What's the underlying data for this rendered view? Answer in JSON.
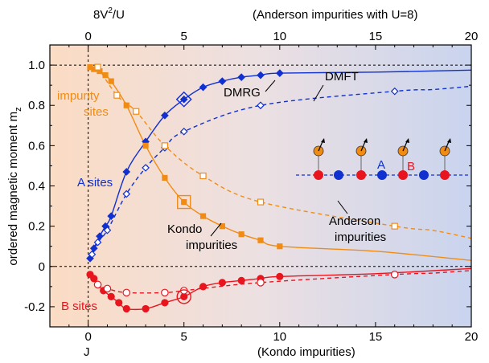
{
  "chart_data": {
    "type": "line",
    "title": "",
    "xlabel": "J",
    "xlabel_right": "(Kondo impurities)",
    "x2label": "8V²/U",
    "x2label_base": "8V",
    "x2label_sup": "2",
    "x2label_tail": "/U",
    "x2label_right": "(Anderson impurities with U=8)",
    "ylabel": "ordered magnetic moment  m",
    "ylabel_sub": "z",
    "xlim": [
      -2,
      20
    ],
    "ylim": [
      -0.3,
      1.1
    ],
    "x_ticks": [
      0,
      5,
      10,
      15,
      20
    ],
    "y_ticks": [
      -0.2,
      0,
      0.2,
      0.4,
      0.6,
      0.8,
      1.0
    ],
    "y_tick_labels": [
      "-0.2",
      "0",
      "0.2",
      "0.4",
      "0.6",
      "0.8",
      "1.0"
    ],
    "grid": false,
    "reference_lines": {
      "x": 0,
      "y": [
        0,
        1.0
      ]
    },
    "series": [
      {
        "key": "A-DMRG-Kondo",
        "color": "#1030d0",
        "marker": "filled-diamond",
        "line": "solid",
        "x": [
          0.1,
          0.3,
          0.6,
          0.9,
          1.2,
          2.0,
          3.0,
          4.0,
          5.0,
          6.0,
          7.0,
          8.0,
          9.0,
          10.0
        ],
        "y": [
          0.04,
          0.09,
          0.15,
          0.2,
          0.25,
          0.47,
          0.62,
          0.75,
          0.83,
          0.89,
          0.92,
          0.94,
          0.95,
          0.96
        ]
      },
      {
        "key": "A-DMFT-Anderson",
        "color": "#1030d0",
        "marker": "open-diamond",
        "line": "dashed",
        "x": [
          0.2,
          0.5,
          1.0,
          2.0,
          3.0,
          4.0,
          5.0,
          9.0,
          16.0
        ],
        "y": [
          0.06,
          0.12,
          0.18,
          0.36,
          0.49,
          0.59,
          0.67,
          0.8,
          0.87
        ]
      },
      {
        "key": "impurity-DMRG-Kondo",
        "color": "#f08c14",
        "marker": "filled-square",
        "line": "solid",
        "x": [
          0.1,
          0.3,
          0.6,
          0.9,
          1.2,
          2.0,
          3.0,
          4.0,
          5.0,
          6.0,
          7.0,
          8.0,
          9.0,
          10.0
        ],
        "y": [
          0.99,
          0.98,
          0.97,
          0.95,
          0.92,
          0.8,
          0.6,
          0.44,
          0.32,
          0.25,
          0.2,
          0.16,
          0.13,
          0.1
        ]
      },
      {
        "key": "impurity-DMFT-Anderson",
        "color": "#f08c14",
        "marker": "open-square",
        "line": "dashed",
        "x": [
          0.5,
          1.5,
          2.5,
          4.0,
          6.0,
          9.0,
          16.0
        ],
        "y": [
          0.99,
          0.85,
          0.77,
          0.6,
          0.45,
          0.32,
          0.2
        ]
      },
      {
        "key": "B-DMRG-Kondo",
        "color": "#e8141e",
        "marker": "filled-circle",
        "line": "solid",
        "x": [
          0.1,
          0.3,
          0.5,
          0.8,
          1.2,
          1.6,
          2.0,
          3.0,
          4.0,
          5.0,
          6.0,
          7.0,
          8.0,
          9.0,
          10.0
        ],
        "y": [
          -0.04,
          -0.06,
          -0.09,
          -0.12,
          -0.15,
          -0.18,
          -0.21,
          -0.21,
          -0.18,
          -0.15,
          -0.1,
          -0.08,
          -0.07,
          -0.06,
          -0.05
        ]
      },
      {
        "key": "B-DMFT-Anderson",
        "color": "#e8141e",
        "marker": "open-circle",
        "line": "dashed",
        "x": [
          0.5,
          1.0,
          2.0,
          4.0,
          5.0,
          9.0,
          16.0
        ],
        "y": [
          -0.09,
          -0.11,
          -0.13,
          -0.13,
          -0.12,
          -0.08,
          -0.04
        ]
      }
    ],
    "highlighted_points": [
      {
        "series": "A-DMRG-Kondo",
        "x": 5.0,
        "y": 0.83
      },
      {
        "series": "impurity-DMRG-Kondo",
        "x": 5.0,
        "y": 0.32
      },
      {
        "series": "B-DMRG-Kondo",
        "x": 5.0,
        "y": -0.15
      }
    ],
    "annotations": {
      "impurity_line1": "impurity",
      "impurity_line2": "sites",
      "a_sites": "A sites",
      "b_sites": "B sites",
      "dmrg": "DMRG",
      "dmft": "DMFT",
      "kondo_line1": "Kondo",
      "kondo_line2": "impurities",
      "anderson_line1": "Anderson",
      "anderson_line2": "impurities",
      "lattice_a": "A",
      "lattice_b": "B"
    },
    "colors": {
      "A": "#1030d0",
      "B": "#e8141e",
      "impurity": "#f08c14"
    }
  }
}
